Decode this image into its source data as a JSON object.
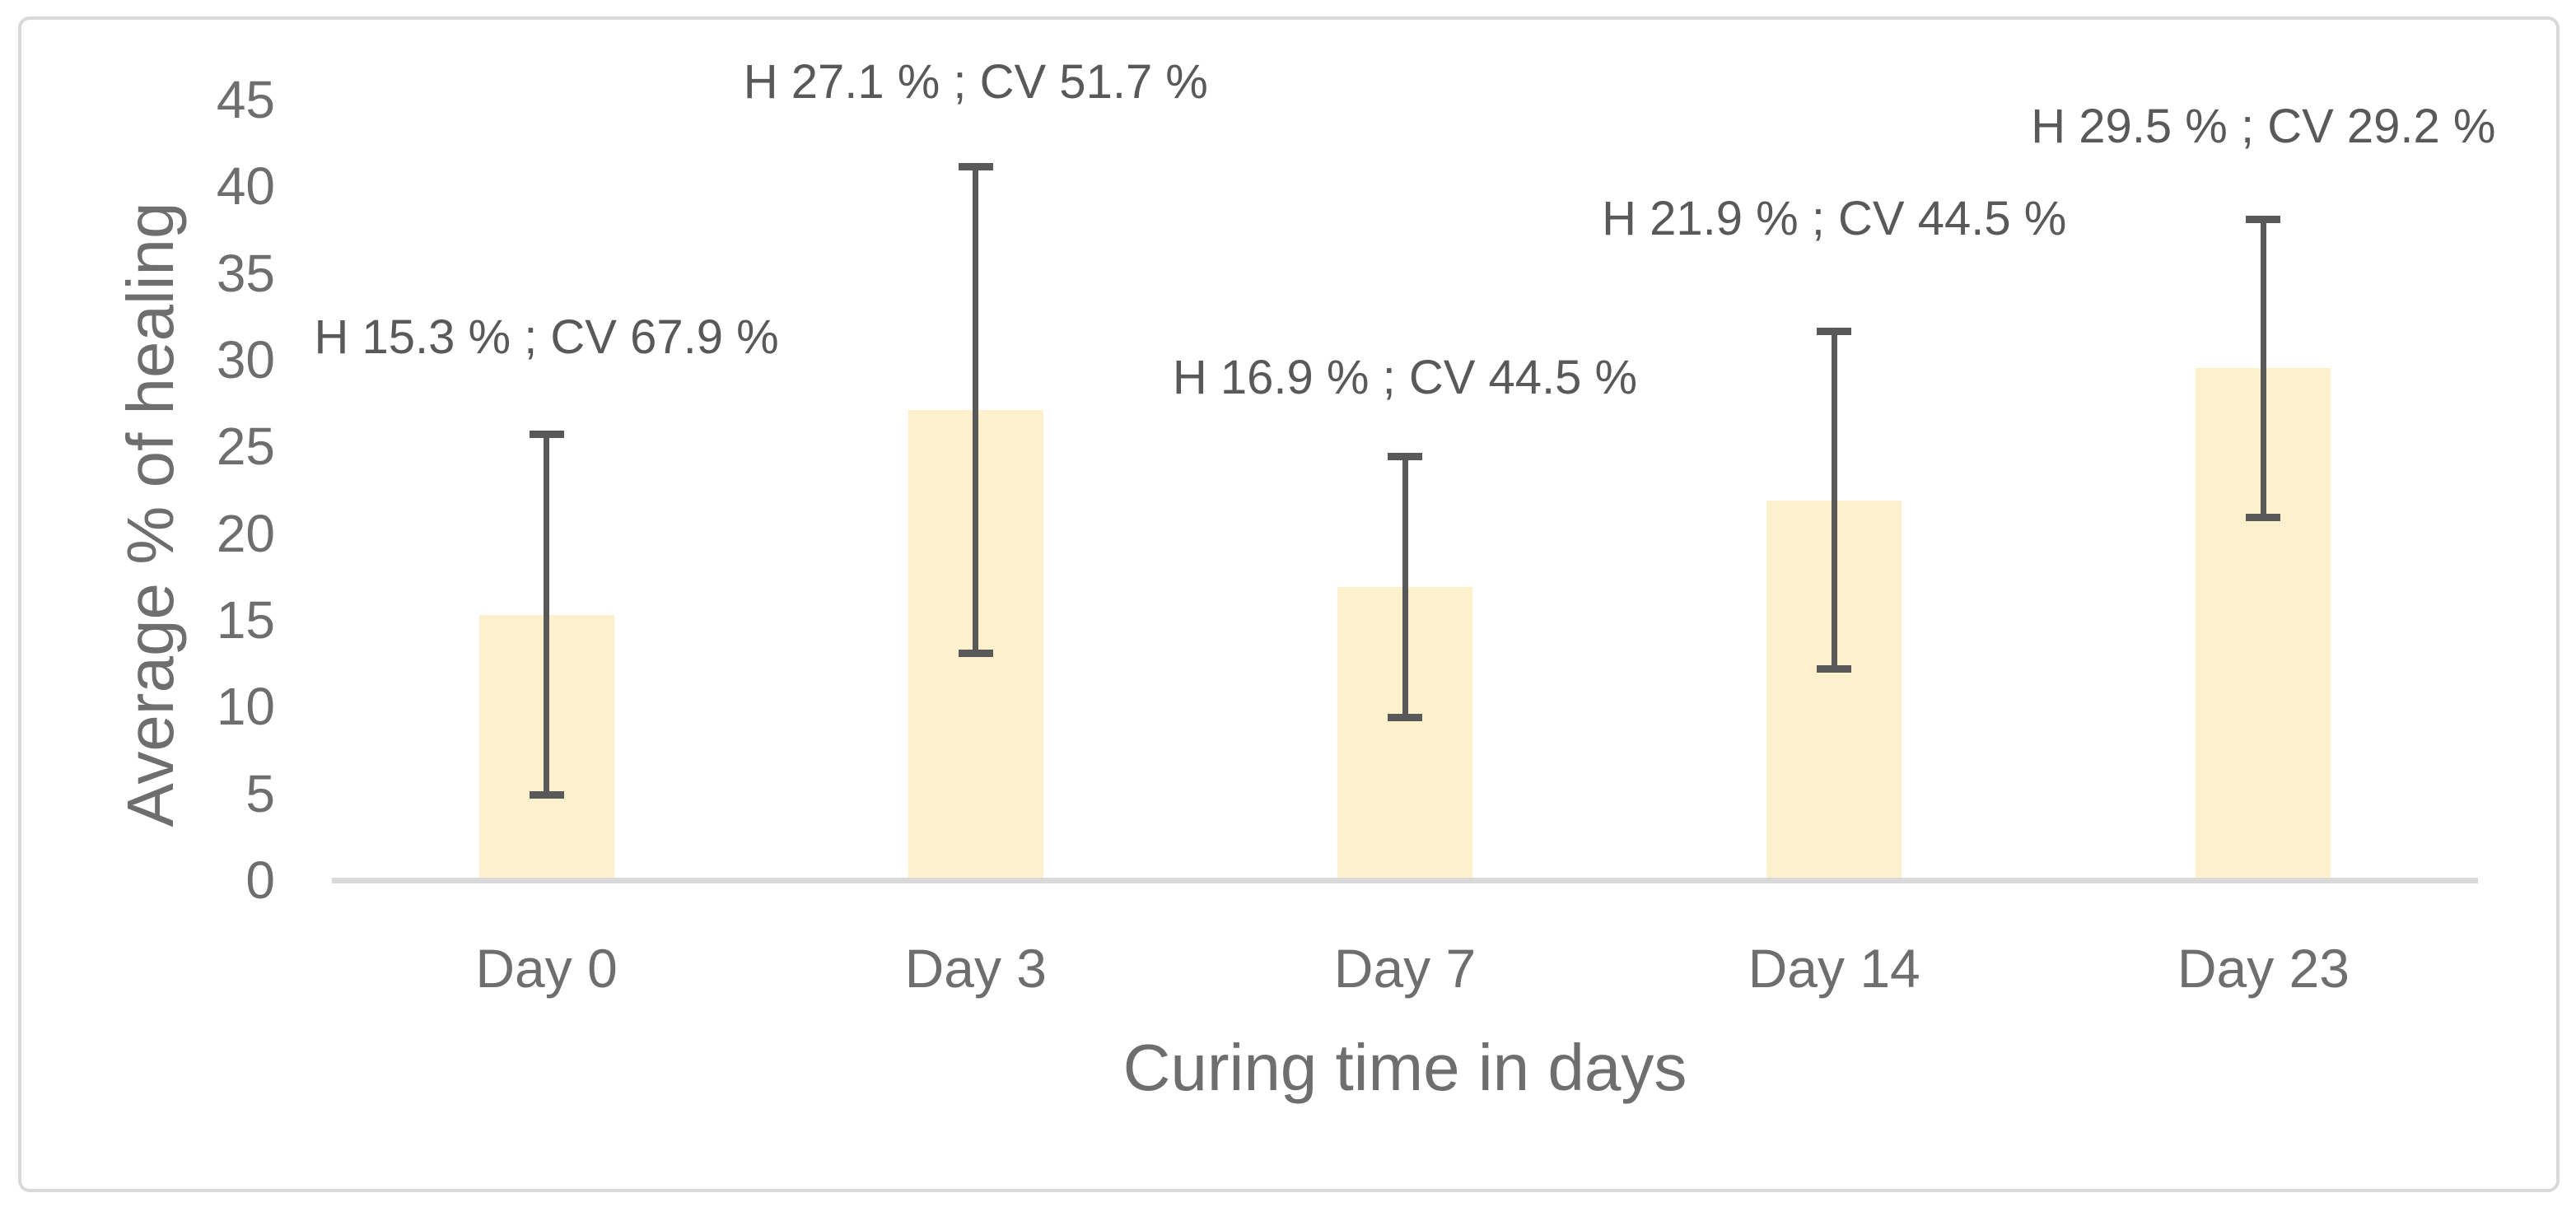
{
  "chart_data": {
    "type": "bar",
    "title": "",
    "xlabel": "Curing time in days",
    "ylabel": "Average % of healing",
    "ylim": [
      0,
      45
    ],
    "ytick_step": 5,
    "ytick_labels": [
      "0",
      "5",
      "10",
      "15",
      "20",
      "25",
      "30",
      "35",
      "40",
      "45"
    ],
    "grid": false,
    "legend": false,
    "categories": [
      "Day 0",
      "Day 3",
      "Day 7",
      "Day 14",
      "Day 23"
    ],
    "values": [
      15.3,
      27.1,
      16.9,
      21.9,
      29.5
    ],
    "cv_percent": [
      67.9,
      51.7,
      44.5,
      44.5,
      29.2
    ],
    "error_low": [
      4.91,
      13.09,
      9.38,
      12.15,
      20.89
    ],
    "error_high": [
      25.69,
      41.11,
      24.42,
      31.65,
      38.11
    ],
    "annotations": [
      "H 15.3 % ; CV 67.9 %",
      "H 27.1 % ; CV 51.7 %",
      "H 16.9 % ; CV 44.5 %",
      "H 21.9 % ; CV 44.5 %",
      "H 29.5 % ; CV 29.2 %"
    ],
    "bar_color": "#fdf0cc",
    "error_bar_color": "#595959",
    "axis_line_color": "#d9d9d9",
    "axis_text_color": "#6e6e6e",
    "annotation_text_color": "#595959",
    "frame_color": "#d9d9d9"
  }
}
